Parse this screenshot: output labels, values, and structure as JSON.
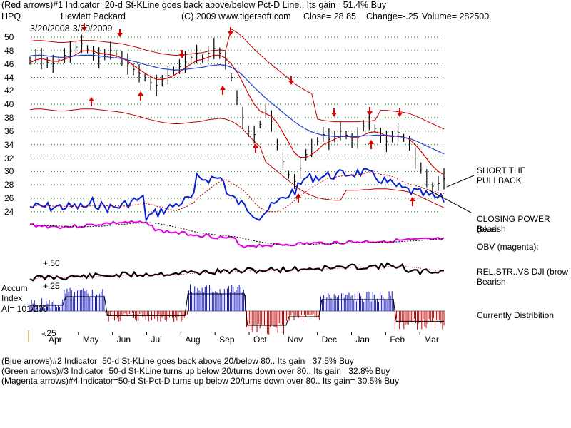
{
  "header": {
    "line1": "(Red arrows)#1 Indicator=20-d St-KLine goes back above/below Pct-D Line.. Its gain= 51.4% Buy",
    "ticker": "HPQ",
    "company": "Hewlett Packard",
    "copyright": "(C) 2009 www.tigersoft.com",
    "close": "Close=  28.85",
    "change": "Change=-.25",
    "volume": "Volume= 282500",
    "daterange": "3/20/2008-3/20/2009"
  },
  "right_labels": {
    "pullback": "SHORT THE PULLBACK",
    "closing_power": "CLOSING POWER (blue",
    "closing_power_status": "Bearish",
    "obv": "OBV (magenta):",
    "relstr": "REL.STR..VS DJI (brow",
    "relstr_status": "Bearish",
    "distribution": "Currently Distribition"
  },
  "accum": {
    "label1": "Accum",
    "label2": "Index",
    "value": "AI= 101/200",
    "plus50": "+.50",
    "plus25": "+.25",
    "minus25": "-.25"
  },
  "footer": {
    "blue": "(Blue arrows)#2 Indicator=50-d St-KLine goes back above 20/below 80.. Its gain= 37.5% Buy",
    "green": "(Green arrows)#3 Indicator=50-d St-KLine turns up below 20/turns down over 80.. Its gain= 32.8% Buy",
    "magenta": "(Magenta arrows)#4 Indicator=50-d St-Pct-D turns up below 20/turns down over 80.. Its gain= 30.5% Buy"
  },
  "colors": {
    "price": "#000000",
    "ma_short": "#d00000",
    "ma_long": "#1f3fd0",
    "band": "#c00000",
    "closing_power": "#0a1fd0",
    "obv": "#e000e0",
    "accum_pos": "#1010c0",
    "accum_neg": "#c00000",
    "arrow_up": "#e00000",
    "arrow_down": "#e00000",
    "grid": "#1a8a1a"
  },
  "chart_data": {
    "type": "line",
    "title": "Hewlett Packard",
    "xlabel": "",
    "ylabel": "",
    "x_ticks": [
      "Apr",
      "May",
      "Jun",
      "Jul",
      "Aug",
      "Sep",
      "Oct",
      "Nov",
      "Dec",
      "Jan",
      "Feb",
      "Mar"
    ],
    "y_ticks": [
      24,
      26,
      28,
      30,
      32,
      34,
      36,
      38,
      40,
      42,
      44,
      46,
      48,
      50
    ],
    "ylim": [
      22,
      51
    ],
    "grid": true,
    "series": [
      {
        "values": [
          46.5,
          47.2,
          46.8,
          46.2,
          46.0,
          46.6,
          47.3,
          47.8,
          48.5,
          49.0,
          48.2,
          47.6,
          46.9,
          47.4,
          48.0,
          47.5,
          46.8,
          46.0,
          45.2,
          44.6,
          44.0,
          43.2,
          42.8,
          43.5,
          44.3,
          45.0,
          45.6,
          46.3,
          47.0,
          47.5,
          46.8,
          47.6,
          48.3,
          47.6,
          46.5,
          44.0,
          41.0,
          38.0,
          36.0,
          35.5,
          37.0,
          39.0,
          37.5,
          34.0,
          31.5,
          29.5,
          28.5,
          30.5,
          32.5,
          33.5,
          34.5,
          35.5,
          34.8,
          35.2,
          36.0,
          35.4,
          34.6,
          35.0,
          36.8,
          37.5,
          36.4,
          35.4,
          34.5,
          35.2,
          35.8,
          35.0,
          34.2,
          32.0,
          30.5,
          29.0,
          27.8,
          28.2,
          28.9
        ]
      },
      {
        "values": [
          46.2,
          46.6,
          46.8,
          46.6,
          46.4,
          46.4,
          46.7,
          47.0,
          47.4,
          47.9,
          48.0,
          47.9,
          47.6,
          47.5,
          47.4,
          47.2,
          46.9,
          46.4,
          45.8,
          45.2,
          44.6,
          44.1,
          43.7,
          43.7,
          43.9,
          44.3,
          44.8,
          45.4,
          46.0,
          46.5,
          46.7,
          47.0,
          47.3,
          47.3,
          46.9,
          46.0,
          44.8,
          43.2,
          41.5,
          40.0,
          39.0,
          38.6,
          38.2,
          37.2,
          35.8,
          34.3,
          32.8,
          32.1,
          32.1,
          32.5,
          33.2,
          34.0,
          34.4,
          34.8,
          35.2,
          35.3,
          35.1,
          35.1,
          35.4,
          35.8,
          35.9,
          35.7,
          35.3,
          35.2,
          35.3,
          35.1,
          34.8,
          34.0,
          33.0,
          31.9,
          30.8,
          30.0,
          29.5
        ]
      },
      {
        "values": [
          47.2,
          47.3,
          47.3,
          47.2,
          47.1,
          47.0,
          47.0,
          47.1,
          47.2,
          47.3,
          47.3,
          47.3,
          47.2,
          47.1,
          47.0,
          46.9,
          46.8,
          46.6,
          46.4,
          46.2,
          45.9,
          45.7,
          45.5,
          45.3,
          45.2,
          45.1,
          45.1,
          45.2,
          45.3,
          45.4,
          45.5,
          45.7,
          45.8,
          45.9,
          45.8,
          45.5,
          45.0,
          44.3,
          43.4,
          42.5,
          41.7,
          40.9,
          40.2,
          39.5,
          38.8,
          38.1,
          37.4,
          36.8,
          36.3,
          35.9,
          35.6,
          35.4,
          35.3,
          35.2,
          35.2,
          35.2,
          35.2,
          35.2,
          35.3,
          35.3,
          35.4,
          35.4,
          35.4,
          35.3,
          35.2,
          35.1,
          34.9,
          34.6,
          34.2,
          33.8,
          33.4,
          33.0,
          32.6
        ]
      }
    ]
  }
}
